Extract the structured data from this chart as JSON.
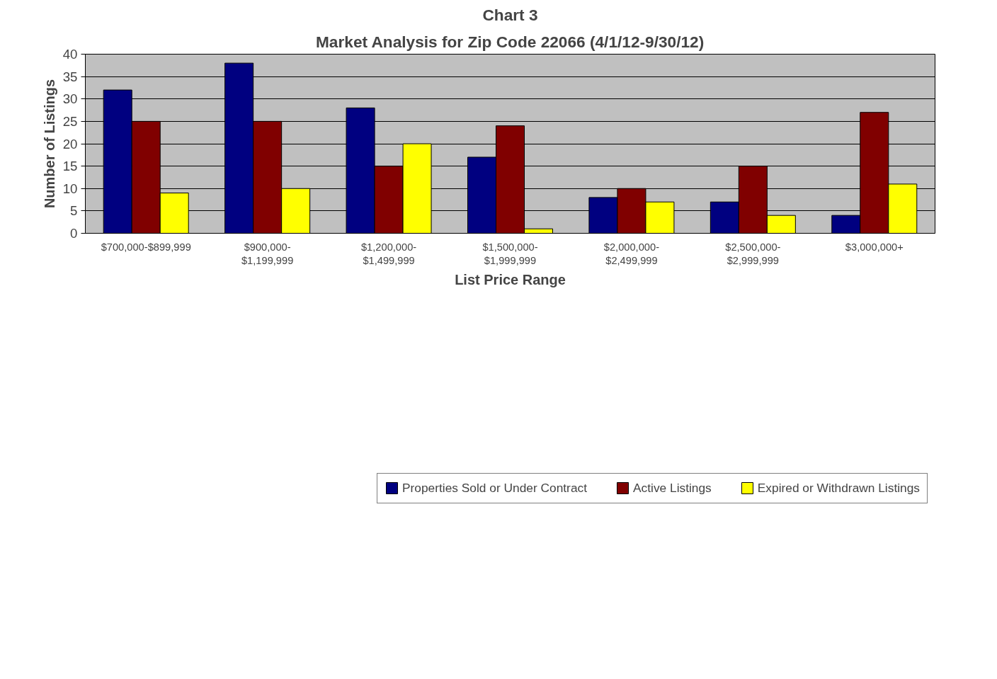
{
  "chart_data": {
    "type": "bar",
    "title": "Chart 3",
    "subtitle": "Market Analysis for Zip Code 22066 (4/1/12-9/30/12)",
    "xlabel": "List Price Range",
    "ylabel": "Number of Listings",
    "categories": [
      "$700,000-$899,999",
      "$900,000-$1,199,999",
      "$1,200,000-$1,499,999",
      "$1,500,000-$1,999,999",
      "$2,000,000-$2,499,999",
      "$2,500,000-$2,999,999",
      "$3,000,000+"
    ],
    "series": [
      {
        "name": "Properties Sold or Under Contract",
        "color": "#000080",
        "values": [
          32,
          38,
          28,
          17,
          8,
          7,
          4
        ]
      },
      {
        "name": "Active Listings",
        "color": "#800000",
        "values": [
          25,
          25,
          15,
          24,
          10,
          15,
          27
        ]
      },
      {
        "name": "Expired or Withdrawn Listings",
        "color": "#ffff00",
        "values": [
          9,
          10,
          20,
          1,
          7,
          4,
          11
        ]
      }
    ],
    "ylim": [
      0,
      40
    ],
    "yticks": [
      0,
      5,
      10,
      15,
      20,
      25,
      30,
      35,
      40
    ],
    "grid": "y",
    "legend": "bottom"
  }
}
